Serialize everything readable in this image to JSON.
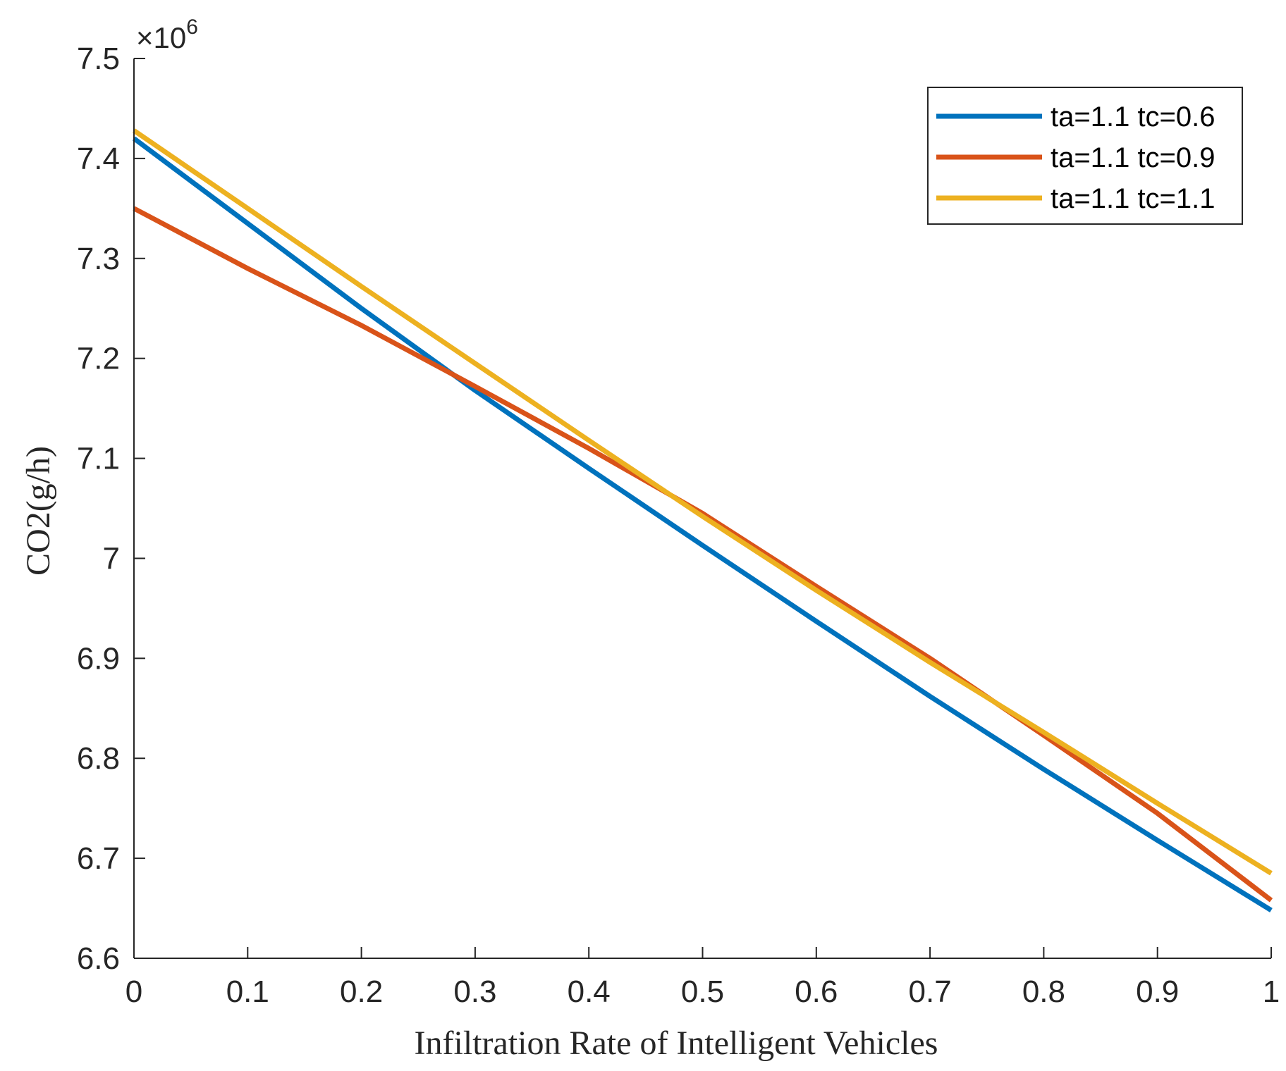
{
  "chart_data": {
    "type": "line",
    "title": "",
    "xlabel": "Infiltration Rate of Intelligent Vehicles",
    "ylabel": "CO2(g/h)",
    "y_exponent_label": "×10",
    "y_exponent_power": "6",
    "xlim": [
      0,
      1
    ],
    "ylim": [
      6.6,
      7.5
    ],
    "x_ticks": [
      0,
      0.1,
      0.2,
      0.3,
      0.4,
      0.5,
      0.6,
      0.7,
      0.8,
      0.9,
      1
    ],
    "x_tick_labels": [
      "0",
      "0.1",
      "0.2",
      "0.3",
      "0.4",
      "0.5",
      "0.6",
      "0.7",
      "0.8",
      "0.9",
      "1"
    ],
    "y_ticks": [
      6.6,
      6.7,
      6.8,
      6.9,
      7.0,
      7.1,
      7.2,
      7.3,
      7.4,
      7.5
    ],
    "y_tick_labels": [
      "6.6",
      "6.7",
      "6.8",
      "6.9",
      "7",
      "7.1",
      "7.2",
      "7.3",
      "7.4",
      "7.5"
    ],
    "grid": false,
    "legend_position": "top-right",
    "series": [
      {
        "name": "ta=1.1 tc=0.6",
        "color": "#0072bd",
        "x": [
          0,
          0.1,
          0.2,
          0.3,
          0.4,
          0.5,
          0.6,
          0.7,
          0.8,
          0.9,
          1
        ],
        "values": [
          7.42,
          7.335,
          7.25,
          7.168,
          7.09,
          7.013,
          6.937,
          6.862,
          6.789,
          6.718,
          6.648
        ]
      },
      {
        "name": "ta=1.1 tc=0.9",
        "color": "#d95319",
        "x": [
          0,
          0.1,
          0.2,
          0.3,
          0.4,
          0.5,
          0.6,
          0.7,
          0.8,
          0.9,
          1
        ],
        "values": [
          7.35,
          7.29,
          7.233,
          7.172,
          7.11,
          7.045,
          6.972,
          6.9,
          6.823,
          6.745,
          6.658
        ]
      },
      {
        "name": "ta=1.1 tc=1.1",
        "color": "#edb120",
        "x": [
          0,
          0.1,
          0.2,
          0.3,
          0.4,
          0.5,
          0.6,
          0.7,
          0.8,
          0.9,
          1
        ],
        "values": [
          7.428,
          7.35,
          7.272,
          7.195,
          7.118,
          7.042,
          6.968,
          6.896,
          6.826,
          6.755,
          6.685
        ]
      }
    ]
  }
}
